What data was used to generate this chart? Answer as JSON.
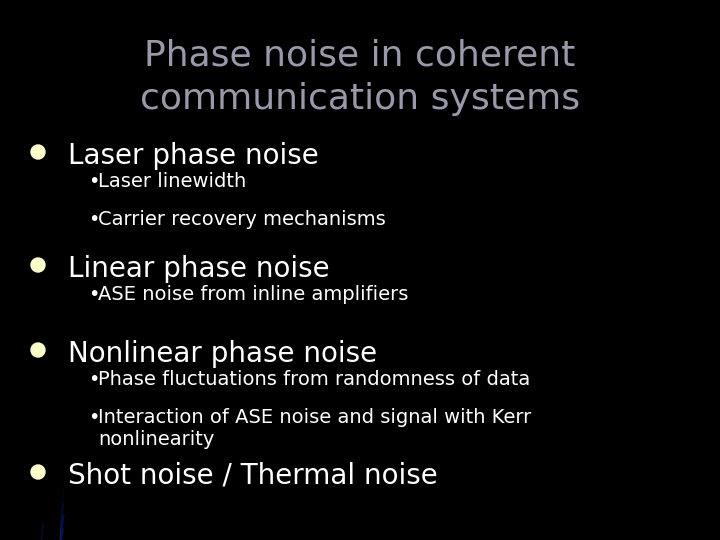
{
  "title_line1": "Phase noise in coherent",
  "title_line2": "communication systems",
  "title_color": "#9999aa",
  "title_fontsize": 26,
  "background_color": "#000000",
  "bullet_color": "#ffffff",
  "bullet_fontsize": 20,
  "sub_bullet_fontsize": 14,
  "bullet_marker_color": "#ffffcc",
  "figsize": [
    7.2,
    5.4
  ],
  "dpi": 100,
  "bullet_items": [
    {
      "text": "Laser phase noise",
      "sub_items": [
        "Laser linewidth",
        "Carrier recovery mechanisms"
      ]
    },
    {
      "text": "Linear phase noise",
      "sub_items": [
        "ASE noise from inline amplifiers"
      ]
    },
    {
      "text": "Nonlinear phase noise",
      "sub_items": [
        "Phase fluctuations from randomness of data",
        "Interaction of ASE noise and signal with Kerr\nnonlinearity"
      ]
    },
    {
      "text": "Shot noise / Thermal noise",
      "sub_items": []
    }
  ]
}
